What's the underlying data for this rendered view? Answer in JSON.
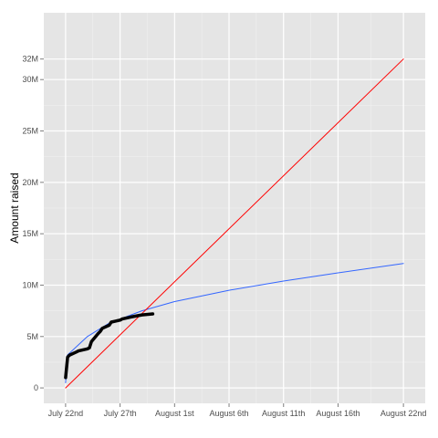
{
  "chart_data": {
    "type": "line",
    "title": "",
    "xlabel": "",
    "ylabel": "Amount raised",
    "x_ticks": [
      "July 22nd",
      "July 27th",
      "August 1st",
      "August 6th",
      "August 11th",
      "August 16th",
      "August 22nd"
    ],
    "x_tick_dates": [
      "2013-07-22",
      "2013-07-27",
      "2013-08-01",
      "2013-08-06",
      "2013-08-11",
      "2013-08-16",
      "2013-08-22"
    ],
    "xlim": [
      "2013-07-20",
      "2013-08-24"
    ],
    "y_ticks": [
      0,
      5,
      10,
      15,
      20,
      25,
      30,
      32
    ],
    "y_tick_labels": [
      "0",
      "5M",
      "10M",
      "15M",
      "20M",
      "25M",
      "30M",
      "32M"
    ],
    "ylim": [
      -1.5,
      36.5
    ],
    "y_unit": "M",
    "grid": true,
    "background": "#e5e5e5",
    "series": [
      {
        "style": "thick-black-step",
        "color": "#000000",
        "points": [
          [
            "2013-07-22",
            1.0
          ],
          [
            "2013-07-22",
            3.0
          ],
          [
            "2013-07-22",
            3.2
          ],
          [
            "2013-07-23",
            3.5
          ],
          [
            "2013-07-23",
            3.6
          ],
          [
            "2013-07-24",
            3.8
          ],
          [
            "2013-07-24",
            3.9
          ],
          [
            "2013-07-24",
            4.5
          ],
          [
            "2013-07-25",
            5.3
          ],
          [
            "2013-07-25",
            5.5
          ],
          [
            "2013-07-25",
            5.8
          ],
          [
            "2013-07-26",
            6.1
          ],
          [
            "2013-07-26",
            6.4
          ],
          [
            "2013-07-27",
            6.6
          ],
          [
            "2013-07-27",
            6.7
          ],
          [
            "2013-07-28",
            6.9
          ],
          [
            "2013-07-29",
            7.1
          ],
          [
            "2013-07-30",
            7.2
          ]
        ]
      },
      {
        "style": "fit-log",
        "color": "#3366ff",
        "points": [
          [
            "2013-07-22",
            0.5
          ],
          [
            "2013-07-22",
            3.2
          ],
          [
            "2013-07-24",
            5.0
          ],
          [
            "2013-07-26",
            6.3
          ],
          [
            "2013-07-29",
            7.5
          ],
          [
            "2013-08-01",
            8.4
          ],
          [
            "2013-08-06",
            9.5
          ],
          [
            "2013-08-11",
            10.4
          ],
          [
            "2013-08-16",
            11.2
          ],
          [
            "2013-08-22",
            12.1
          ]
        ]
      },
      {
        "style": "linear-projection",
        "color": "#ff0000",
        "points": [
          [
            "2013-07-22",
            0.0
          ],
          [
            "2013-08-22",
            32.0
          ]
        ]
      }
    ]
  }
}
